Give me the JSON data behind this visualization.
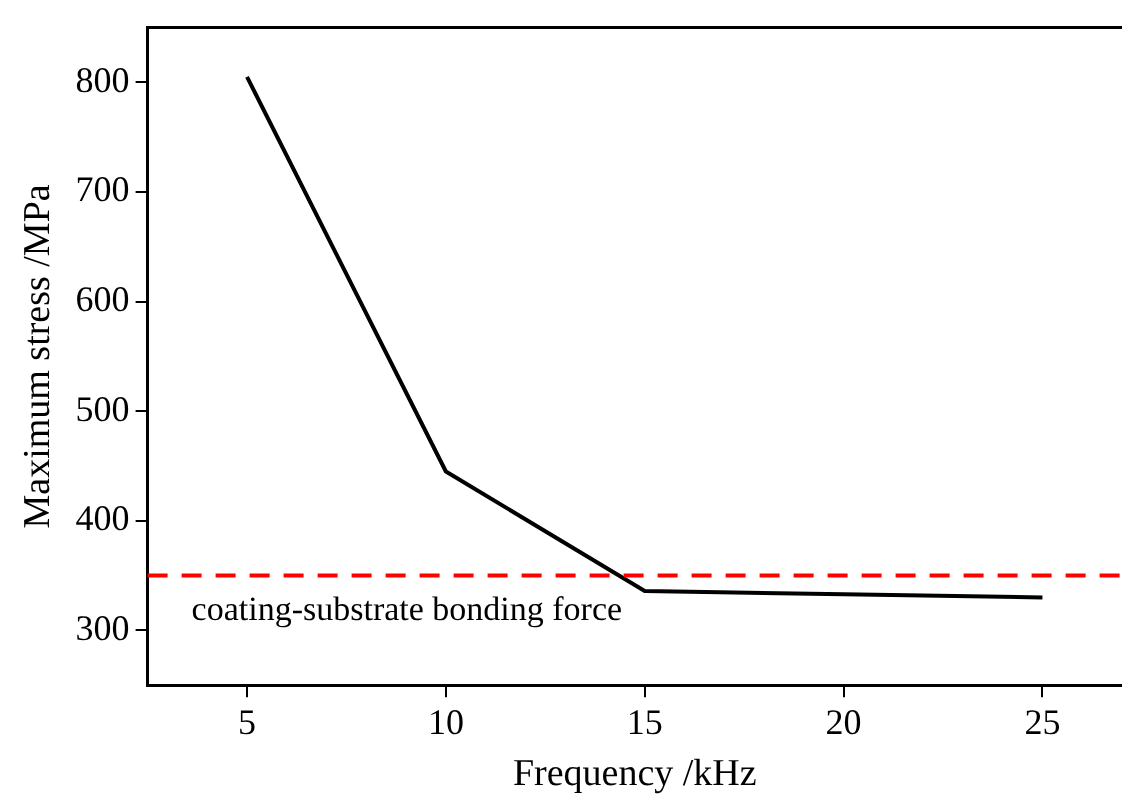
{
  "chart_data": {
    "type": "line",
    "xlabel": "Frequency /kHz",
    "ylabel": "Maximum stress /MPa",
    "x": [
      5,
      10,
      15,
      20,
      25
    ],
    "series": [
      {
        "color": "#000000",
        "values": [
          805,
          445,
          336,
          333,
          330
        ]
      }
    ],
    "xlim": [
      2.5,
      27
    ],
    "xticks": [
      5,
      10,
      15,
      20,
      25
    ],
    "ylim": [
      250,
      850
    ],
    "yticks": [
      300,
      400,
      500,
      600,
      700,
      800
    ],
    "grid": false,
    "legend": false,
    "marker": "none",
    "line_style": "solid",
    "ref_lines": [
      {
        "axis": "y",
        "value": 350,
        "label": "coating-substrate bonding force",
        "color": "#ff0000",
        "line_style": "dashed"
      }
    ]
  }
}
